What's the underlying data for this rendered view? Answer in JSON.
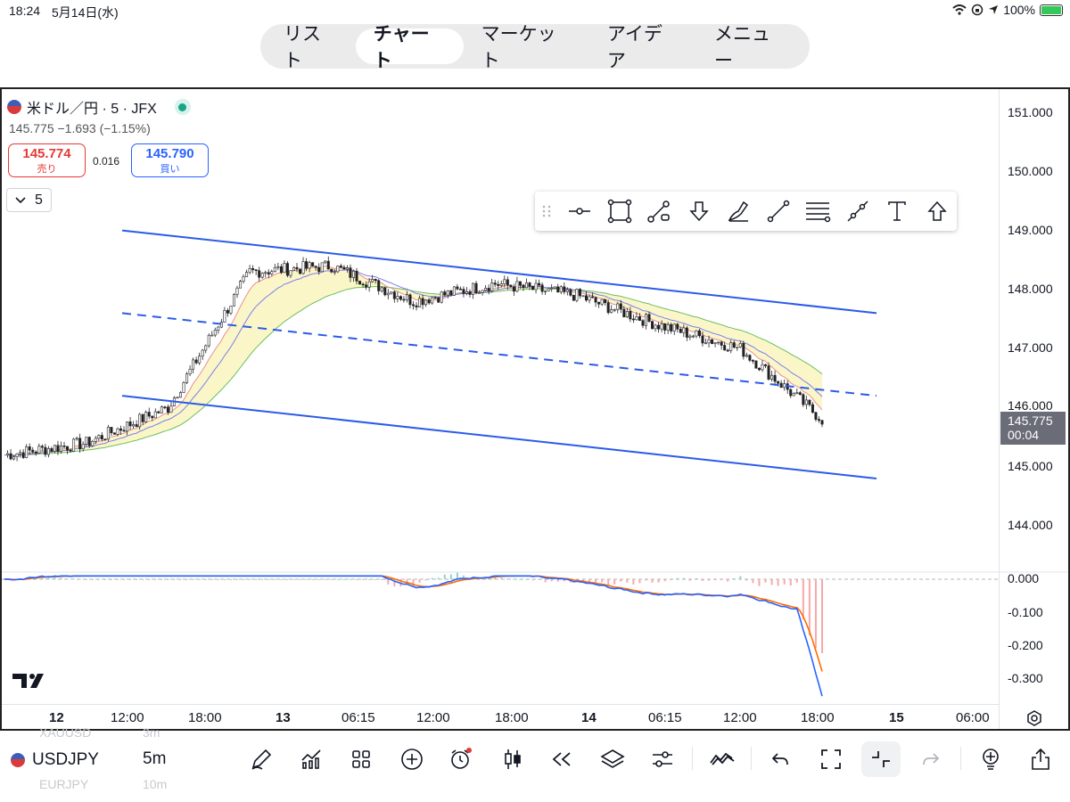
{
  "status_bar": {
    "time": "18:24",
    "date": "5月14日(水)",
    "battery": "100%"
  },
  "nav": {
    "tabs": [
      "リスト",
      "チャート",
      "マーケット",
      "アイデア",
      "メニュー"
    ],
    "active": "チャート"
  },
  "symbol": {
    "title": "米ドル／円 · 5 · JFX",
    "quote": "145.775  −1.693 (−1.15%)",
    "sell_price": "145.774",
    "sell_label": "売り",
    "spread": "0.016",
    "buy_price": "145.790",
    "buy_label": "買い",
    "interval": "5"
  },
  "drawing_tools": [
    "horizontal-line-icon",
    "rectangle-icon",
    "path-icon",
    "arrow-down-icon",
    "brush-icon",
    "trend-line-icon",
    "fib-levels-icon",
    "ray-icon",
    "text-icon",
    "arrow-up-icon"
  ],
  "price_scale": {
    "labels": [
      "151.000",
      "150.000",
      "149.000",
      "148.000",
      "147.000",
      "146.000",
      "145.000",
      "144.000"
    ],
    "current_price": "145.775",
    "countdown": "00:04"
  },
  "macd_scale": {
    "labels": [
      "0.000",
      "-0.100",
      "-0.200",
      "-0.300"
    ]
  },
  "time_axis": {
    "labels": [
      "12",
      "12:00",
      "18:00",
      "13",
      "06:15",
      "12:00",
      "18:00",
      "14",
      "06:15",
      "12:00",
      "18:00",
      "15",
      "06:00"
    ]
  },
  "bottom": {
    "symbol": "USDJPY",
    "timeframe": "5m",
    "ghost_prev_symbol": "XAUUSD",
    "ghost_prev_tf": "3m",
    "ghost_next_symbol": "EURJPY",
    "ghost_next_tf": "10m"
  },
  "colors": {
    "accent_blue": "#2962ff",
    "sell_red": "#e53935",
    "channel": "#2b5be8",
    "macd_line": "#2962ff",
    "signal_line": "#ff6d00"
  },
  "chart_data": {
    "type": "line",
    "title": "米ドル／円 · 5 · JFX",
    "ylim": [
      143.6,
      151.4
    ],
    "x": [
      "12",
      "12:00",
      "18:00",
      "13",
      "06:15",
      "12:00",
      "18:00",
      "14",
      "06:15",
      "12:00",
      "18:00"
    ],
    "series": [
      {
        "values": [
          145.2,
          145.4,
          146.0,
          148.3,
          148.4,
          147.8,
          148.1,
          147.9,
          147.4,
          147.0,
          145.8
        ]
      }
    ],
    "channel": {
      "upper_start": 149.0,
      "upper_end": 147.6,
      "middle_start": 147.6,
      "middle_end": 146.2,
      "lower_start": 146.2,
      "lower_end": 144.8
    },
    "grid": false
  }
}
